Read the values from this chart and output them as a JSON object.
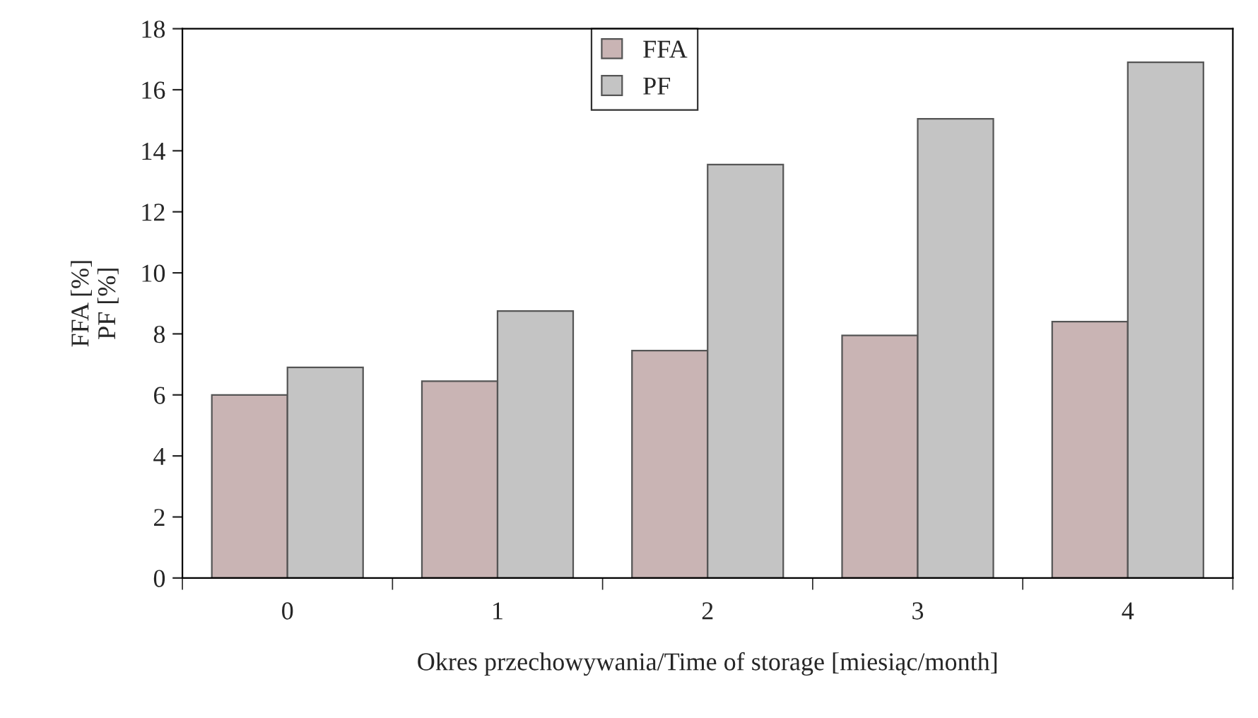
{
  "chart_data": {
    "type": "bar",
    "xlabel": "Okres przechowywania/Time of storage [miesiąc/month]",
    "ylabel": "FFA [%]\nPF [%]",
    "categories": [
      "0",
      "1",
      "2",
      "3",
      "4"
    ],
    "series": [
      {
        "name": "FFA",
        "color": "#c9b4b4",
        "values": [
          6.0,
          6.45,
          7.45,
          7.95,
          8.4
        ]
      },
      {
        "name": "PF",
        "color": "#c4c4c4",
        "values": [
          6.9,
          8.75,
          13.55,
          15.05,
          16.9
        ]
      }
    ],
    "ylim": [
      0,
      18
    ],
    "yticks": [
      0,
      2,
      4,
      6,
      8,
      10,
      12,
      14,
      16,
      18
    ],
    "grid": false,
    "legend": "top"
  }
}
